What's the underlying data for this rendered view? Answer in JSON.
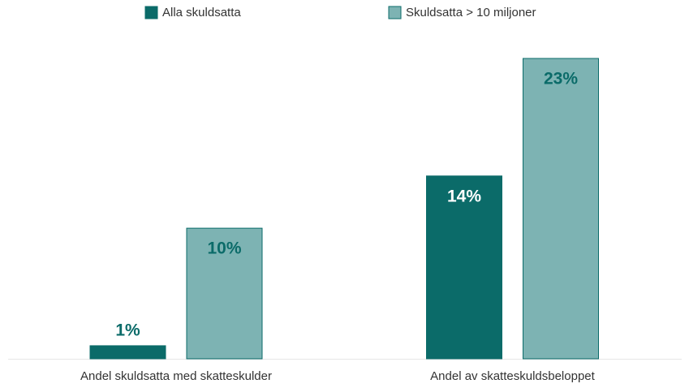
{
  "chart_data": {
    "type": "bar",
    "categories": [
      "Andel skuldsatta med skatteskulder",
      "Andel av skatteskuldsbeloppet"
    ],
    "series": [
      {
        "name": "Alla skuldsatta",
        "color": "#0b6b69",
        "values": [
          1,
          14
        ],
        "value_labels": [
          "1%",
          "14%"
        ]
      },
      {
        "name": "Skuldsatta > 10 miljoner",
        "color": "#7db3b3",
        "values": [
          10,
          23
        ],
        "value_labels": [
          "10%",
          "23%"
        ]
      }
    ]
  }
}
